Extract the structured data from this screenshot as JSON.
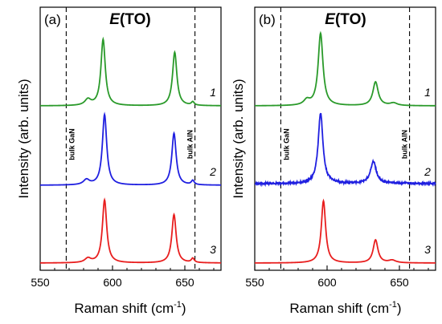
{
  "chart_data": [
    {
      "type": "line",
      "panel_label": "(a)",
      "title_italic": "E",
      "title_rest": "(TO)",
      "xlabel": "Raman shift (cm",
      "xlabel_sup": "-1",
      "xlabel_close": ")",
      "ylabel": "Intensity (arb. units)",
      "xlim": [
        550,
        675
      ],
      "xticks": [
        550,
        600,
        650
      ],
      "y_offsets": [
        2,
        1,
        0
      ],
      "reference_lines": [
        {
          "x": 568,
          "label": "bulk GaN"
        },
        {
          "x": 657,
          "label": "bulk AlN"
        }
      ],
      "series": [
        {
          "trace": "1",
          "color": "#2a9a2a",
          "noise": 0.0,
          "baseline": 0.0,
          "peaks": [
            {
              "x": 593.5,
              "h": 0.78,
              "w": 1.8
            },
            {
              "x": 643,
              "h": 0.63,
              "w": 1.8
            },
            {
              "x": 583,
              "h": 0.07,
              "w": 2.5
            },
            {
              "x": 655.5,
              "h": 0.04,
              "w": 1.2
            }
          ]
        },
        {
          "trace": "2",
          "color": "#1f1fe0",
          "noise": 0.0,
          "baseline": 0.0,
          "peaks": [
            {
              "x": 594.5,
              "h": 0.83,
              "w": 1.8
            },
            {
              "x": 642.5,
              "h": 0.61,
              "w": 1.8
            },
            {
              "x": 582,
              "h": 0.06,
              "w": 2.5
            },
            {
              "x": 655.5,
              "h": 0.05,
              "w": 1.2
            }
          ]
        },
        {
          "trace": "3",
          "color": "#e81e1e",
          "noise": 0.0,
          "baseline": 0.0,
          "peaks": [
            {
              "x": 594.5,
              "h": 0.74,
              "w": 1.8
            },
            {
              "x": 642.5,
              "h": 0.57,
              "w": 1.8
            },
            {
              "x": 583,
              "h": 0.05,
              "w": 2.5
            },
            {
              "x": 655.5,
              "h": 0.05,
              "w": 1.2
            }
          ]
        }
      ]
    },
    {
      "type": "line",
      "panel_label": "(b)",
      "title_italic": "E",
      "title_rest": "(TO)",
      "xlabel": "Raman shift (cm",
      "xlabel_sup": "-1",
      "xlabel_close": ")",
      "ylabel": "Intensity (arb. units)",
      "xlim": [
        550,
        675
      ],
      "xticks": [
        550,
        600,
        650
      ],
      "y_offsets": [
        2,
        1,
        0
      ],
      "reference_lines": [
        {
          "x": 568,
          "label": "bulk GaN"
        },
        {
          "x": 657,
          "label": "bulk AlN"
        }
      ],
      "series": [
        {
          "trace": "1",
          "color": "#2a9a2a",
          "noise": 0.0,
          "baseline": 0.0,
          "peaks": [
            {
              "x": 595.5,
              "h": 0.85,
              "w": 2.0
            },
            {
              "x": 633.5,
              "h": 0.28,
              "w": 2.2
            },
            {
              "x": 586,
              "h": 0.06,
              "w": 2.5
            },
            {
              "x": 646,
              "h": 0.03,
              "w": 3.0
            }
          ]
        },
        {
          "trace": "2",
          "color": "#1f1fe0",
          "noise": 0.012,
          "baseline": 0.02,
          "peaks": [
            {
              "x": 595.5,
              "h": 0.83,
              "w": 2.0
            },
            {
              "x": 632,
              "h": 0.26,
              "w": 2.4
            }
          ]
        },
        {
          "trace": "3",
          "color": "#e81e1e",
          "noise": 0.0,
          "baseline": 0.0,
          "peaks": [
            {
              "x": 597.5,
              "h": 0.73,
              "w": 1.8
            },
            {
              "x": 633.5,
              "h": 0.27,
              "w": 2.0
            },
            {
              "x": 645,
              "h": 0.03,
              "w": 3.0
            }
          ]
        }
      ]
    }
  ]
}
